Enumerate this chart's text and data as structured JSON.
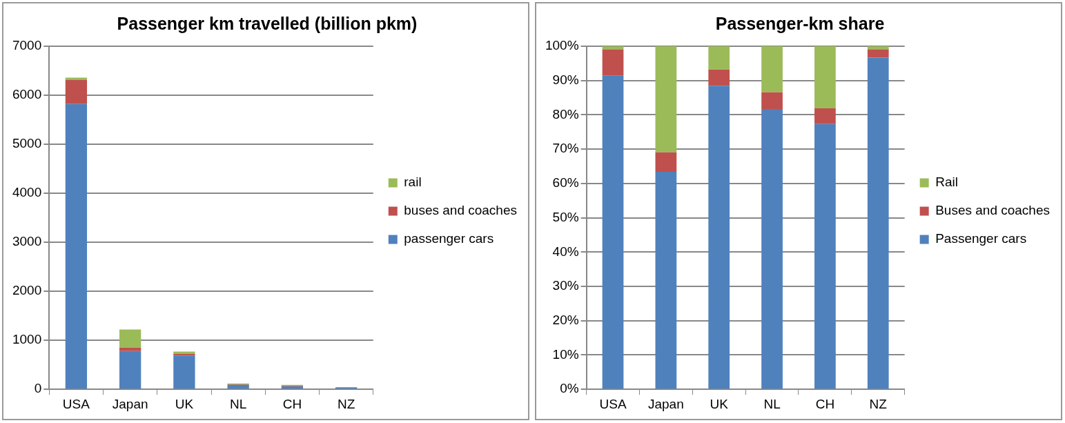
{
  "chart_data": [
    {
      "type": "bar",
      "title": "Passenger km travelled (billion pkm)",
      "categories": [
        "USA",
        "Japan",
        "UK",
        "NL",
        "CH",
        "NZ"
      ],
      "stacked": true,
      "grid": "y",
      "legend": "right",
      "ylim": [
        0,
        7000
      ],
      "yticks": [
        0,
        1000,
        2000,
        3000,
        4000,
        5000,
        6000,
        7000
      ],
      "series": [
        {
          "name": "passenger cars",
          "color": "#4f81bd",
          "values": [
            5820,
            780,
            690,
            90,
            60,
            40
          ]
        },
        {
          "name": "buses and coaches",
          "color": "#c0504d",
          "values": [
            490,
            70,
            30,
            10,
            10,
            null
          ]
        },
        {
          "name": "rail",
          "color": "#9bbb59",
          "values": [
            50,
            370,
            50,
            20,
            20,
            null
          ]
        }
      ]
    },
    {
      "type": "bar",
      "title": "Passenger-km share",
      "categories": [
        "USA",
        "Japan",
        "UK",
        "NL",
        "CH",
        "NZ"
      ],
      "stacked": true,
      "grid": "y",
      "legend": "right",
      "ylim": [
        0,
        100
      ],
      "yticks": [
        {
          "value": 0,
          "label": "0%"
        },
        {
          "value": 10,
          "label": "10%"
        },
        {
          "value": 20,
          "label": "20%"
        },
        {
          "value": 30,
          "label": "30%"
        },
        {
          "value": 40,
          "label": "40%"
        },
        {
          "value": 50,
          "label": "50%"
        },
        {
          "value": 60,
          "label": "60%"
        },
        {
          "value": 70,
          "label": "70%"
        },
        {
          "value": 80,
          "label": "80%"
        },
        {
          "value": 90,
          "label": "90%"
        },
        {
          "value": 100,
          "label": "100%"
        }
      ],
      "series": [
        {
          "name": "Passenger cars",
          "color": "#4f81bd",
          "values": [
            91.4,
            63.4,
            88.5,
            81.7,
            77.3,
            96.7
          ]
        },
        {
          "name": "Buses and coaches",
          "color": "#c0504d",
          "values": [
            7.7,
            5.7,
            4.7,
            4.9,
            4.6,
            2.4
          ]
        },
        {
          "name": "Rail",
          "color": "#9bbb59",
          "values": [
            0.9,
            30.9,
            6.8,
            13.4,
            18.1,
            0.9
          ]
        }
      ]
    }
  ]
}
